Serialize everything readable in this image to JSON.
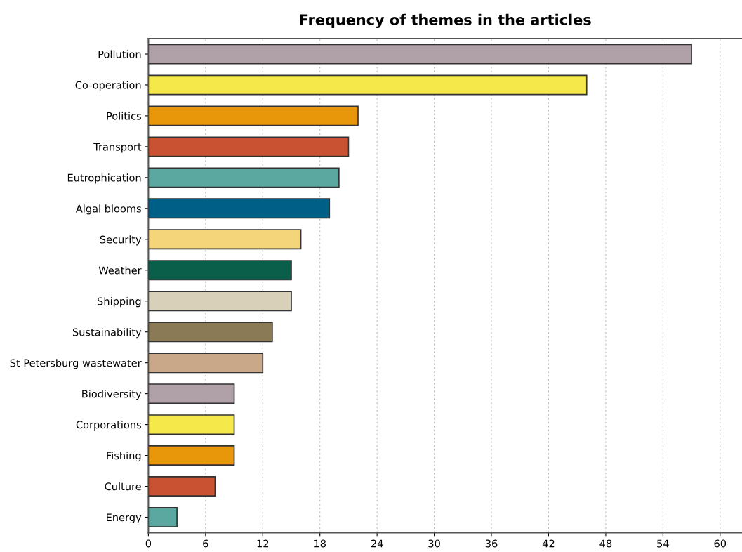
{
  "chart_data": {
    "type": "bar",
    "orientation": "horizontal",
    "title": "Frequency of themes in the articles",
    "categories": [
      "Pollution",
      "Co-operation",
      "Politics",
      "Transport",
      "Eutrophication",
      "Algal blooms",
      "Security",
      "Weather",
      "Shipping",
      "Sustainability",
      "St Petersburg wastewater",
      "Biodiversity",
      "Corporations",
      "Fishing",
      "Culture",
      "Energy"
    ],
    "values": [
      57,
      46,
      22,
      21,
      20,
      19,
      16,
      15,
      15,
      13,
      12,
      9,
      9,
      9,
      7,
      3
    ],
    "colors": [
      "#b0a0a8",
      "#f5e84a",
      "#e8960a",
      "#c85232",
      "#5ba8a0",
      "#005f87",
      "#f5d57a",
      "#0a5f4b",
      "#d8d0b8",
      "#8a7a55",
      "#c8a888",
      "#b0a0a8",
      "#f5e84a",
      "#e8960a",
      "#c85232",
      "#5ba8a0"
    ],
    "xlim": [
      0,
      62.3
    ],
    "xticks": [
      0,
      6,
      12,
      18,
      24,
      30,
      36,
      42,
      48,
      54,
      60
    ],
    "grid": "x"
  }
}
